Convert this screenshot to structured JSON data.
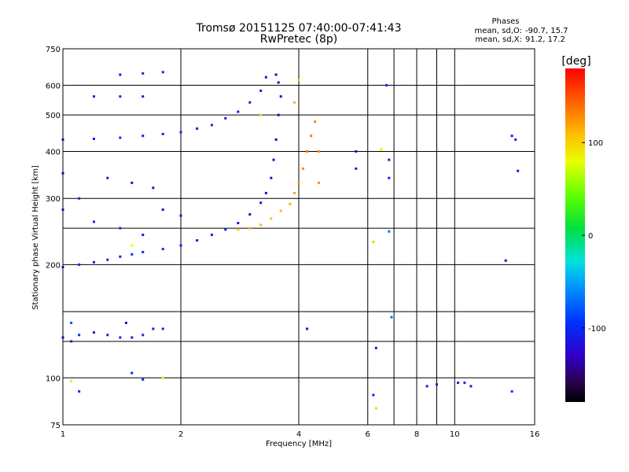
{
  "chart_data": {
    "type": "scatter",
    "title": "Tromsø 20151125 07:40:00-07:41:43",
    "subtitle": "RwPretec (8p)",
    "xlabel": "Frequency [MHz]",
    "ylabel": "Stationary phase Virtual Height [km]",
    "x_scale": "log",
    "y_scale": "log",
    "xlim": [
      1,
      16
    ],
    "ylim": [
      75,
      750
    ],
    "x_ticks": [
      1,
      2,
      4,
      6,
      8,
      10,
      16
    ],
    "x_tick_labels": [
      "1",
      "2",
      "4",
      "6",
      "8",
      "10",
      "16"
    ],
    "x_gridlines": [
      2,
      4,
      6,
      7,
      8,
      9,
      10
    ],
    "y_ticks": [
      75,
      100,
      200,
      300,
      400,
      500,
      600,
      750
    ],
    "y_tick_labels": [
      "75",
      "100",
      "200",
      "300",
      "400",
      "500",
      "600",
      "750"
    ],
    "y_gridlines": [
      100,
      125,
      150,
      200,
      250,
      300,
      400,
      500,
      600
    ],
    "grid": true,
    "stats_header": "Phases",
    "stats": [
      {
        "label": "mean, sd,O:",
        "values": "-90.7, 15.7"
      },
      {
        "label": "mean, sd,X:",
        "values": "91.2, 17.2"
      }
    ],
    "colorbar": {
      "title": "[deg]",
      "min": -180,
      "max": 180,
      "ticks": [
        100,
        0,
        -100
      ],
      "tick_labels": [
        "100",
        "0",
        "-100"
      ],
      "position": "right"
    },
    "series": [
      {
        "trace": "E_layer_echo",
        "points": [
          [
            1.0,
            128,
            -110
          ],
          [
            1.05,
            125,
            -105
          ],
          [
            1.1,
            130,
            -100
          ],
          [
            1.2,
            132,
            -115
          ],
          [
            1.3,
            130,
            -110
          ],
          [
            1.4,
            128,
            -105
          ],
          [
            1.5,
            128,
            -110
          ],
          [
            1.6,
            130,
            -100
          ],
          [
            1.7,
            135,
            -110
          ],
          [
            1.8,
            135,
            -105
          ],
          [
            1.05,
            140,
            -80
          ],
          [
            1.45,
            140,
            -115
          ],
          [
            1.5,
            103,
            -110
          ],
          [
            1.6,
            99,
            -95
          ],
          [
            1.8,
            100,
            85
          ],
          [
            1.1,
            92,
            -100
          ],
          [
            1.05,
            98,
            70
          ]
        ]
      },
      {
        "trace": "F_layer_O_mode",
        "points": [
          [
            1.0,
            197,
            -100
          ],
          [
            1.1,
            200,
            -95
          ],
          [
            1.2,
            203,
            -100
          ],
          [
            1.3,
            206,
            -95
          ],
          [
            1.4,
            210,
            -100
          ],
          [
            1.5,
            213,
            -95
          ],
          [
            1.6,
            216,
            -100
          ],
          [
            1.8,
            220,
            -95
          ],
          [
            2.0,
            225,
            -100
          ],
          [
            2.2,
            232,
            -105
          ],
          [
            2.4,
            240,
            -105
          ],
          [
            2.6,
            248,
            -110
          ],
          [
            2.8,
            258,
            -110
          ],
          [
            3.0,
            272,
            -115
          ],
          [
            3.2,
            292,
            -120
          ],
          [
            3.3,
            310,
            -125
          ],
          [
            3.4,
            340,
            -125
          ],
          [
            3.45,
            380,
            -130
          ],
          [
            3.5,
            430,
            -130
          ],
          [
            3.55,
            500,
            -135
          ],
          [
            3.6,
            560,
            -130
          ],
          [
            3.55,
            610,
            -135
          ],
          [
            3.5,
            640,
            -130
          ]
        ]
      },
      {
        "trace": "F_layer_X_mode",
        "points": [
          [
            2.8,
            248,
            110
          ],
          [
            3.0,
            250,
            115
          ],
          [
            3.2,
            255,
            110
          ],
          [
            3.4,
            265,
            105
          ],
          [
            3.6,
            278,
            110
          ],
          [
            3.8,
            290,
            115
          ],
          [
            3.9,
            310,
            120
          ],
          [
            4.0,
            330,
            125
          ],
          [
            4.1,
            360,
            130
          ],
          [
            4.2,
            400,
            135
          ],
          [
            4.3,
            440,
            135
          ],
          [
            4.4,
            480,
            130
          ],
          [
            4.5,
            400,
            130
          ],
          [
            4.5,
            330,
            125
          ],
          [
            4.0,
            620,
            105
          ],
          [
            3.9,
            540,
            110
          ],
          [
            3.2,
            500,
            100
          ]
        ]
      },
      {
        "trace": "multi_hop_echo",
        "points": [
          [
            1.0,
            430,
            -100
          ],
          [
            1.2,
            432,
            -105
          ],
          [
            1.4,
            435,
            -100
          ],
          [
            1.6,
            440,
            -105
          ],
          [
            1.8,
            445,
            -100
          ],
          [
            2.0,
            450,
            -105
          ],
          [
            2.2,
            460,
            -105
          ],
          [
            2.4,
            470,
            -100
          ],
          [
            2.6,
            490,
            -105
          ],
          [
            2.8,
            510,
            -110
          ],
          [
            3.0,
            540,
            -110
          ],
          [
            3.2,
            580,
            -115
          ],
          [
            3.3,
            630,
            -120
          ],
          [
            1.4,
            640,
            -110
          ],
          [
            1.6,
            645,
            -105
          ],
          [
            1.8,
            650,
            -100
          ],
          [
            1.4,
            560,
            -100
          ],
          [
            1.6,
            560,
            -105
          ],
          [
            1.2,
            560,
            -105
          ],
          [
            1.0,
            350,
            -105
          ],
          [
            1.3,
            340,
            -110
          ],
          [
            1.5,
            330,
            -115
          ],
          [
            1.7,
            320,
            -120
          ],
          [
            1.1,
            300,
            -95
          ],
          [
            1.0,
            280,
            -90
          ],
          [
            1.2,
            260,
            -100
          ],
          [
            1.4,
            250,
            -95
          ],
          [
            1.6,
            240,
            -110
          ],
          [
            1.8,
            280,
            -120
          ],
          [
            2.0,
            270,
            -115
          ],
          [
            1.5,
            225,
            80
          ]
        ]
      },
      {
        "trace": "scattered_points",
        "points": [
          [
            5.6,
            400,
            -110
          ],
          [
            5.6,
            360,
            -105
          ],
          [
            6.2,
            230,
            60
          ],
          [
            6.3,
            120,
            -110
          ],
          [
            6.5,
            405,
            80
          ],
          [
            6.7,
            600,
            -105
          ],
          [
            6.8,
            380,
            -110
          ],
          [
            6.8,
            340,
            -100
          ],
          [
            6.8,
            245,
            -70
          ],
          [
            6.9,
            145,
            -70
          ],
          [
            6.2,
            90,
            -105
          ],
          [
            6.3,
            83,
            60
          ],
          [
            8.5,
            95,
            -110
          ],
          [
            9.0,
            96,
            -100
          ],
          [
            10.2,
            97,
            -110
          ],
          [
            10.6,
            97,
            -100
          ],
          [
            11.0,
            95,
            -110
          ],
          [
            13.5,
            205,
            -125
          ],
          [
            14.0,
            440,
            -110
          ],
          [
            14.3,
            430,
            -105
          ],
          [
            14.5,
            355,
            -115
          ],
          [
            14.0,
            92,
            -90
          ],
          [
            4.2,
            135,
            -120
          ]
        ]
      }
    ]
  }
}
